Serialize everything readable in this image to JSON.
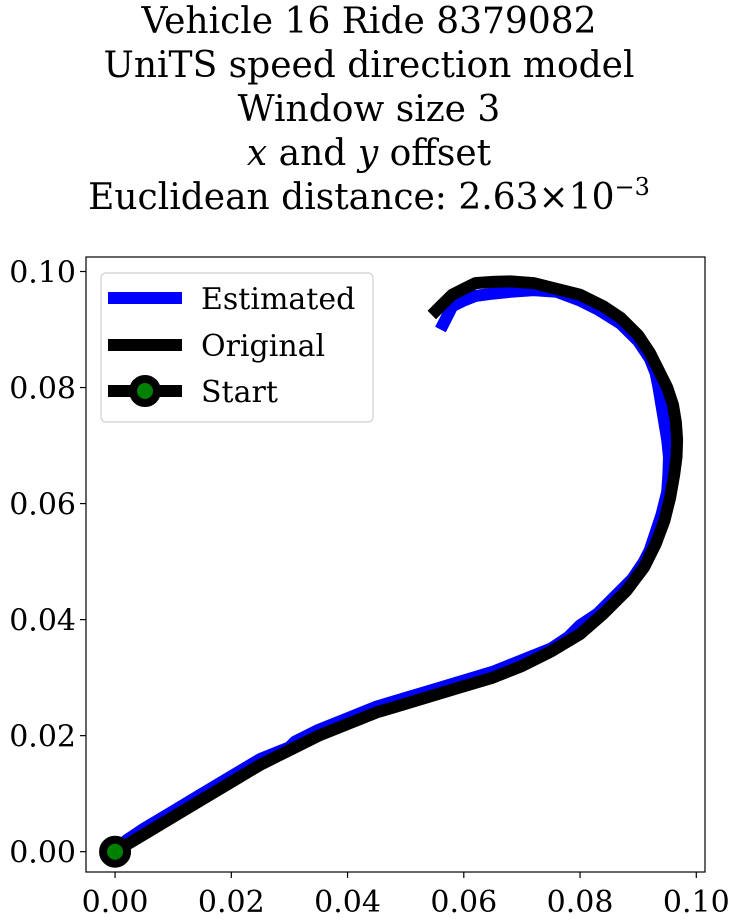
{
  "title": {
    "line1": "Vehicle 16 Ride 8379082",
    "line2": "UniTS speed direction model",
    "line3": "Window size 3",
    "line4_var_x": "x",
    "line4_and": "and",
    "line4_var_y": "y",
    "line4_rest": "offset",
    "line5_prefix": "Euclidean distance: 2.63",
    "line5_times": "×",
    "line5_base": "10",
    "line5_exp": "−3"
  },
  "colors": {
    "estimated": "#0000ff",
    "original": "#000000",
    "start_marker": "#008000"
  },
  "chart_data": {
    "type": "line",
    "title": "Vehicle 16 Ride 8379082 UniTS speed direction model Window size 3 x and y offset Euclidean distance: 2.63×10^-3",
    "xlabel": "",
    "ylabel": "",
    "xlim": [
      -0.005,
      0.1015
    ],
    "ylim": [
      -0.0035,
      0.1025
    ],
    "xticks": [
      0.0,
      0.02,
      0.04,
      0.06,
      0.08,
      0.1
    ],
    "xtick_labels": [
      "0.00",
      "0.02",
      "0.04",
      "0.06",
      "0.08",
      "0.10"
    ],
    "yticks": [
      0.0,
      0.02,
      0.04,
      0.06,
      0.08,
      0.1
    ],
    "ytick_labels": [
      "0.00",
      "0.02",
      "0.04",
      "0.06",
      "0.08",
      "0.10"
    ],
    "grid": false,
    "legend": {
      "placement": "upper left",
      "entries": [
        "Estimated",
        "Original",
        "Start"
      ]
    },
    "series": [
      {
        "name": "Estimated",
        "color": "#0000ff",
        "x": [
          0.0,
          0.002,
          0.005,
          0.01,
          0.015,
          0.02,
          0.025,
          0.03,
          0.031,
          0.035,
          0.04,
          0.045,
          0.05,
          0.055,
          0.06,
          0.065,
          0.07,
          0.075,
          0.078,
          0.08,
          0.083,
          0.086,
          0.089,
          0.091,
          0.092,
          0.093,
          0.094,
          0.0945,
          0.095,
          0.0952,
          0.0953,
          0.095,
          0.0945,
          0.094,
          0.0935,
          0.093,
          0.092,
          0.09,
          0.087,
          0.083,
          0.08,
          0.076,
          0.072,
          0.068,
          0.065,
          0.062,
          0.06,
          0.058,
          0.057,
          0.056
        ],
        "y": [
          0.0,
          0.002,
          0.004,
          0.007,
          0.01,
          0.013,
          0.016,
          0.018,
          0.019,
          0.021,
          0.023,
          0.025,
          0.0265,
          0.028,
          0.0295,
          0.031,
          0.033,
          0.035,
          0.037,
          0.039,
          0.041,
          0.044,
          0.047,
          0.05,
          0.052,
          0.055,
          0.058,
          0.06,
          0.062,
          0.065,
          0.068,
          0.071,
          0.074,
          0.077,
          0.08,
          0.0825,
          0.085,
          0.088,
          0.091,
          0.0935,
          0.095,
          0.0965,
          0.0968,
          0.0965,
          0.0962,
          0.0958,
          0.095,
          0.094,
          0.092,
          0.09
        ]
      },
      {
        "name": "Original",
        "color": "#000000",
        "x": [
          0.0,
          0.005,
          0.01,
          0.015,
          0.02,
          0.025,
          0.03,
          0.035,
          0.04,
          0.045,
          0.05,
          0.055,
          0.06,
          0.065,
          0.07,
          0.075,
          0.08,
          0.084,
          0.088,
          0.091,
          0.093,
          0.0945,
          0.0955,
          0.0962,
          0.0966,
          0.0967,
          0.0965,
          0.096,
          0.095,
          0.0935,
          0.092,
          0.09,
          0.087,
          0.084,
          0.08,
          0.076,
          0.072,
          0.068,
          0.065,
          0.062,
          0.06,
          0.058,
          0.056,
          0.0545
        ],
        "y": [
          0.0,
          0.003,
          0.006,
          0.009,
          0.012,
          0.015,
          0.0175,
          0.02,
          0.022,
          0.024,
          0.0255,
          0.027,
          0.0285,
          0.03,
          0.032,
          0.0345,
          0.0375,
          0.041,
          0.045,
          0.049,
          0.053,
          0.057,
          0.061,
          0.065,
          0.068,
          0.071,
          0.074,
          0.077,
          0.08,
          0.083,
          0.086,
          0.089,
          0.092,
          0.094,
          0.096,
          0.097,
          0.098,
          0.0983,
          0.0982,
          0.098,
          0.097,
          0.096,
          0.094,
          0.0925
        ]
      }
    ],
    "start_point": {
      "name": "Start",
      "x": 0.0,
      "y": 0.0
    }
  }
}
